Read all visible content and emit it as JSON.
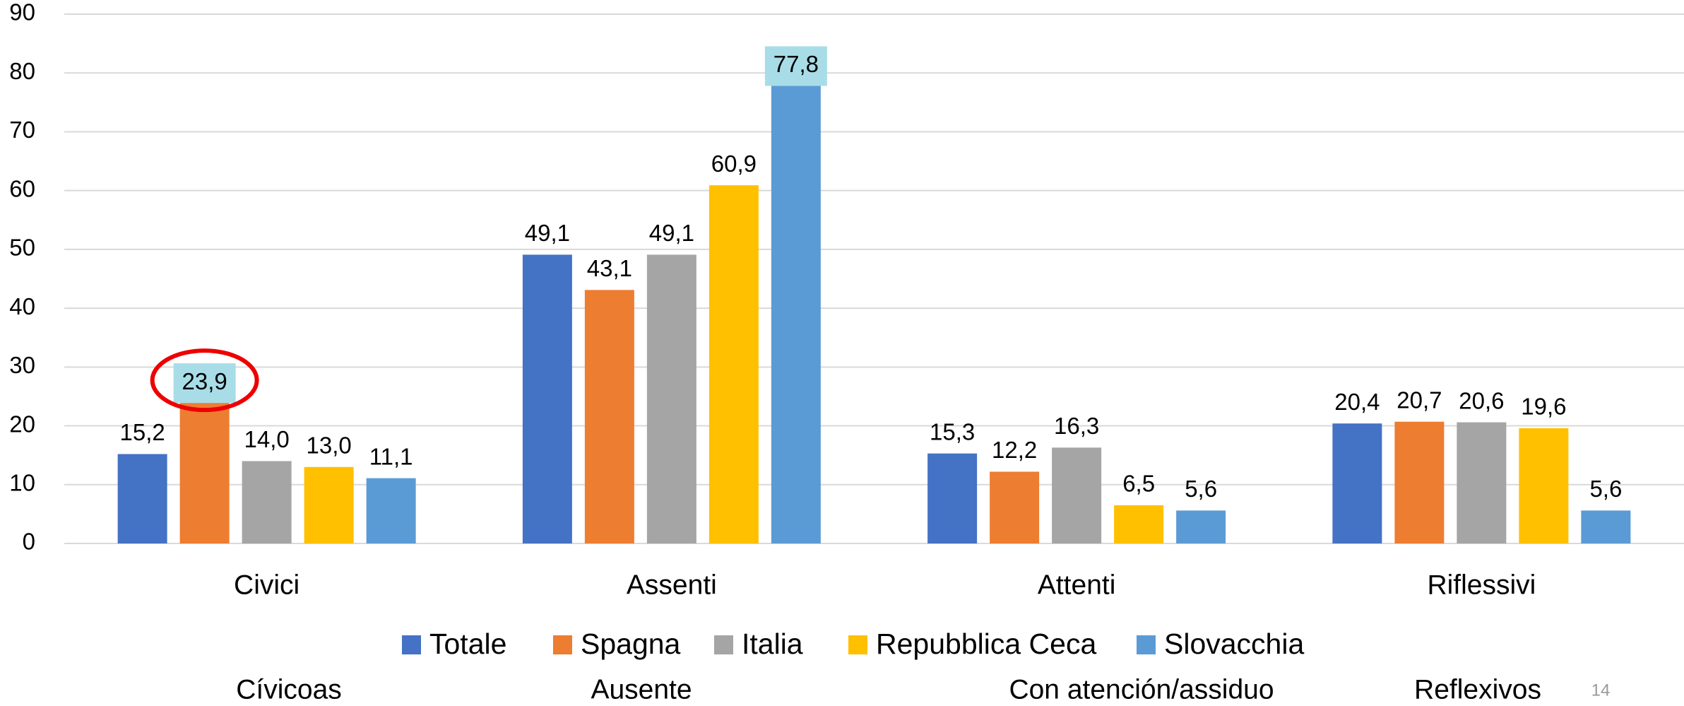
{
  "chart_data": {
    "type": "bar",
    "categories": [
      "Civici",
      "Assenti",
      "Attenti",
      "Riflessivi"
    ],
    "series": [
      {
        "name": "Totale",
        "color": "#4472c4",
        "values": [
          15.2,
          49.1,
          15.3,
          20.4
        ],
        "value_labels": [
          "15,2",
          "49,1",
          "15,3",
          "20,4"
        ]
      },
      {
        "name": "Spagna",
        "color": "#ed7d31",
        "values": [
          23.9,
          43.1,
          12.2,
          20.7
        ],
        "value_labels": [
          "23,9",
          "43,1",
          "12,2",
          "20,7"
        ]
      },
      {
        "name": "Italia",
        "color": "#a5a5a5",
        "values": [
          14.0,
          49.1,
          16.3,
          20.6
        ],
        "value_labels": [
          "14,0",
          "49,1",
          "16,3",
          "20,6"
        ]
      },
      {
        "name": "Repubblica Ceca",
        "color": "#ffc000",
        "values": [
          13.0,
          60.9,
          6.5,
          19.6
        ],
        "value_labels": [
          "13,0",
          "60,9",
          "6,5",
          "19,6"
        ]
      },
      {
        "name": "Slovacchia",
        "color": "#5b9bd5",
        "values": [
          11.1,
          77.8,
          5.6,
          5.6
        ],
        "value_labels": [
          "11,1",
          "77,8",
          "5,6",
          "5,6"
        ]
      }
    ],
    "ylim": [
      0,
      90
    ],
    "yticks": [
      0,
      10,
      20,
      30,
      40,
      50,
      60,
      70,
      80,
      90
    ],
    "grid": true,
    "secondary_labels": [
      "Cívicoas",
      "Ausente",
      "Con atención/assiduo",
      "Reflexivos"
    ],
    "page_number": "14"
  }
}
